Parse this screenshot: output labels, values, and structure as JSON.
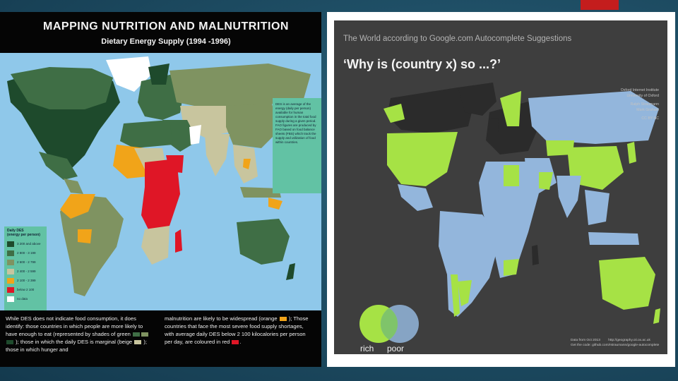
{
  "slide": {
    "accent_color": "#c41d1d",
    "background": "#1f4f66"
  },
  "left_map": {
    "title": "MAPPING NUTRITION AND MALNUTRITION",
    "subtitle": "Dietary Energy Supply (1994 -1996)",
    "info_text": "DES is an average of the energy (daily per person) available for human consumption in the total food supply during a given period. FAO figures are produced by FAO based on food balance sheets (FBS) which track the supply and utilization of food within countries.",
    "legend": {
      "title": "Daily DES",
      "title2": "(energy per person)",
      "items": [
        {
          "label": "3 200 and above",
          "color": "#1e4a2c"
        },
        {
          "label": "2 800 - 3 199",
          "color": "#3f6e45"
        },
        {
          "label": "2 600 - 2 799",
          "color": "#7f9361"
        },
        {
          "label": "2 400 - 2 599",
          "color": "#c8c59e"
        },
        {
          "label": "2 100 - 2 399",
          "color": "#f1a419"
        },
        {
          "label": "below 2 100",
          "color": "#df1626"
        },
        {
          "label": "no data",
          "color": "#ffffff"
        }
      ]
    },
    "footer_left_1": "While DES does not indicate food consumption, it does identify: those countries in which people are more likely to have enough to eat (represented by shades of green",
    "footer_left_2": "); those in which the daily DES is marginal (beige",
    "footer_left_3": "); those in which hunger and",
    "footer_right_1": "malnutrition are likely to be widespread (orange",
    "footer_right_2": "); Those countries that face the most severe food supply shortages, with average daily DES below 2 100 kilocalories per person per day, are coloured in red",
    "footer_right_3": "."
  },
  "right_map": {
    "attribution": "The World according to Google.com Autocomplete Suggestions",
    "title": "‘Why is (country x) so ...?’",
    "credits_institution_1": "Oxford Internet Institute",
    "credits_institution_2": "University of Oxford",
    "credits_author_1": "Ralph Straumann",
    "credits_author_2": "Mark Graham",
    "credits_license": "CC BY-NC",
    "venn_left_label": "rich",
    "venn_right_label": "poor",
    "venn_left_color": "#a6e245",
    "venn_right_color": "#93b6dc",
    "footer_1": "Data from Oct 2013",
    "footer_2": "http://geography.oii.ox.ac.uk",
    "footer_3": "Get the code: github.com/rstraumann/google-autocomplete"
  }
}
